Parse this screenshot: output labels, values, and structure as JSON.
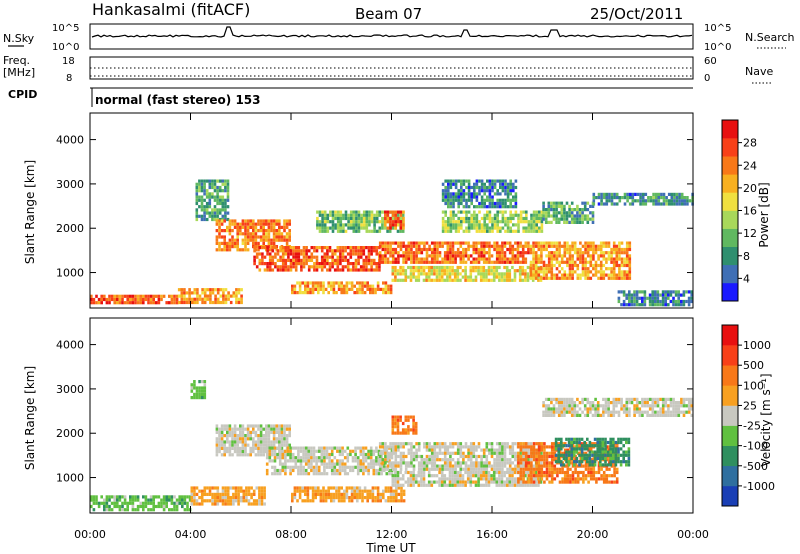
{
  "header": {
    "station": "Hankasalmi (fitACF)",
    "beam": "Beam 07",
    "date": "25/Oct/2011"
  },
  "top_panels": {
    "nsky_label": "N.Sky",
    "nsky_ticks": [
      "10^5",
      "10^0"
    ],
    "nsearch_label": "N.Search",
    "nsearch_ticks": [
      "10^5",
      "10^0"
    ],
    "freq_label": "Freq.",
    "freq_unit": "[MHz]",
    "freq_ticks": [
      "18",
      "8"
    ],
    "nave_label": "Nave",
    "nave_ticks": [
      "60",
      "0"
    ],
    "cpid_label": "CPID",
    "cpid_text": "normal (fast stereo) 153"
  },
  "chart_data": [
    {
      "type": "heatmap",
      "name": "power-panel",
      "ylabel": "Slant Range [km]",
      "xlabel": "",
      "x_range": [
        0,
        24
      ],
      "ylim": [
        200,
        4600
      ],
      "y_ticks": [
        "4000",
        "3000",
        "2000",
        "1000"
      ],
      "y_tick_values": [
        4000,
        3000,
        2000,
        1000
      ],
      "colorbar": {
        "label": "Power [dB]",
        "ticks": [
          "28",
          "24",
          "20",
          "16",
          "12",
          "8",
          "4"
        ],
        "tick_values": [
          28,
          24,
          20,
          16,
          12,
          8,
          4
        ],
        "range": [
          0,
          32
        ],
        "colors": [
          "#1a1aff",
          "#3f6fb5",
          "#2f8f6f",
          "#60b860",
          "#a8d85a",
          "#f0e040",
          "#f8b020",
          "#f87818",
          "#f84018",
          "#e81010"
        ]
      },
      "bands": [
        {
          "t0": 0.0,
          "t1": 3.5,
          "r0": 300,
          "r1": 500,
          "v": 26
        },
        {
          "t0": 3.5,
          "t1": 6.0,
          "r0": 350,
          "r1": 650,
          "v": 22
        },
        {
          "t0": 4.2,
          "t1": 5.5,
          "r0": 2200,
          "r1": 3100,
          "v": 9
        },
        {
          "t0": 5.0,
          "t1": 8.0,
          "r0": 1500,
          "r1": 2200,
          "v": 24
        },
        {
          "t0": 6.5,
          "t1": 11.5,
          "r0": 1050,
          "r1": 1600,
          "v": 26
        },
        {
          "t0": 8.0,
          "t1": 12.0,
          "r0": 550,
          "r1": 800,
          "v": 22
        },
        {
          "t0": 9.0,
          "t1": 12.5,
          "r0": 1900,
          "r1": 2400,
          "v": 12
        },
        {
          "t0": 11.5,
          "t1": 17.5,
          "r0": 1200,
          "r1": 1700,
          "v": 25
        },
        {
          "t0": 11.7,
          "t1": 12.5,
          "r0": 2000,
          "r1": 2400,
          "v": 26
        },
        {
          "t0": 12.0,
          "t1": 18.0,
          "r0": 800,
          "r1": 1150,
          "v": 18
        },
        {
          "t0": 14.0,
          "t1": 18.0,
          "r0": 1900,
          "r1": 2400,
          "v": 14
        },
        {
          "t0": 14.0,
          "t1": 17.0,
          "r0": 2500,
          "r1": 3100,
          "v": 7
        },
        {
          "t0": 17.5,
          "t1": 21.5,
          "r0": 900,
          "r1": 1700,
          "v": 22
        },
        {
          "t0": 18.0,
          "t1": 20.0,
          "r0": 2100,
          "r1": 2600,
          "v": 10
        },
        {
          "t0": 20.0,
          "t1": 24.0,
          "r0": 2550,
          "r1": 2800,
          "v": 8
        },
        {
          "t0": 21.0,
          "t1": 24.0,
          "r0": 300,
          "r1": 600,
          "v": 7
        }
      ]
    },
    {
      "type": "heatmap",
      "name": "velocity-panel",
      "ylabel": "Slant Range [km]",
      "xlabel": "Time UT",
      "x_range": [
        0,
        24
      ],
      "x_ticks": [
        "00:00",
        "04:00",
        "08:00",
        "12:00",
        "16:00",
        "20:00",
        "00:00"
      ],
      "x_tick_values": [
        0,
        4,
        8,
        12,
        16,
        20,
        24
      ],
      "ylim": [
        200,
        4600
      ],
      "y_ticks": [
        "4000",
        "3000",
        "2000",
        "1000"
      ],
      "y_tick_values": [
        4000,
        3000,
        2000,
        1000
      ],
      "colorbar": {
        "label": "Velocity [m s⁻¹]",
        "ticks": [
          "1000",
          "500",
          "100",
          "25",
          "-25",
          "-100",
          "-500",
          "-1000"
        ],
        "colors": [
          "#1a3fb5",
          "#2f6f9f",
          "#2f8f5f",
          "#60c040",
          "#c8c8c0",
          "#f8a020",
          "#f87818",
          "#f84018",
          "#e81010"
        ]
      },
      "bands": [
        {
          "t0": 0.0,
          "t1": 4.0,
          "r0": 300,
          "r1": 600,
          "c": 3
        },
        {
          "t0": 4.0,
          "t1": 4.6,
          "r0": 2800,
          "r1": 3200,
          "c": 3
        },
        {
          "t0": 4.0,
          "t1": 7.0,
          "r0": 400,
          "r1": 800,
          "c": 5
        },
        {
          "t0": 5.0,
          "t1": 8.0,
          "r0": 1500,
          "r1": 2200,
          "c": 4
        },
        {
          "t0": 7.0,
          "t1": 12.0,
          "r0": 1100,
          "r1": 1700,
          "c": 4
        },
        {
          "t0": 8.0,
          "t1": 12.5,
          "r0": 500,
          "r1": 800,
          "c": 5
        },
        {
          "t0": 11.5,
          "t1": 18.0,
          "r0": 1200,
          "r1": 1800,
          "c": 4
        },
        {
          "t0": 12.0,
          "t1": 13.0,
          "r0": 2000,
          "r1": 2400,
          "c": 6
        },
        {
          "t0": 12.0,
          "t1": 18.0,
          "r0": 800,
          "r1": 1150,
          "c": 4
        },
        {
          "t0": 17.0,
          "t1": 21.0,
          "r0": 900,
          "r1": 1800,
          "c": 6
        },
        {
          "t0": 18.5,
          "t1": 21.5,
          "r0": 1300,
          "r1": 1900,
          "c": 2
        },
        {
          "t0": 18.0,
          "t1": 24.0,
          "r0": 2400,
          "r1": 2800,
          "c": 4
        }
      ]
    }
  ]
}
